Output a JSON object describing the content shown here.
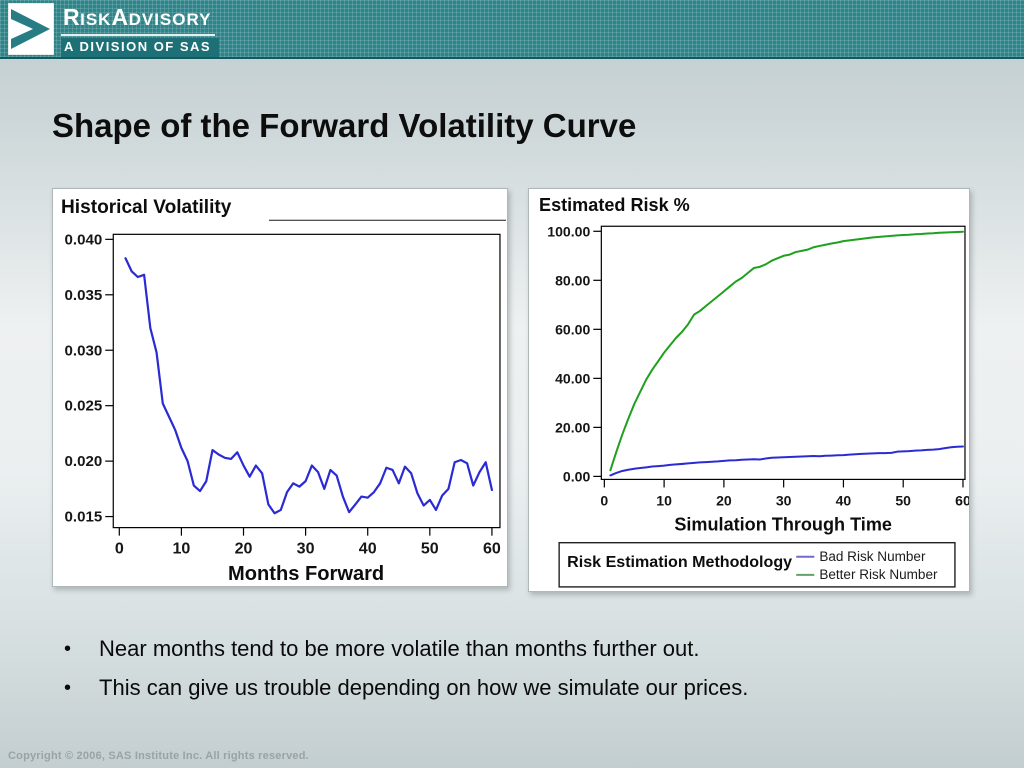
{
  "banner": {
    "brand": {
      "w1i": "R",
      "w1r": "ISK",
      "w2i": "A",
      "w2r": "DVISORY"
    },
    "division": "A DIVISION OF SAS"
  },
  "slide": {
    "title": "Shape of the Forward Volatility Curve",
    "bullet_char": "•",
    "bullets": [
      "Near months tend to be more volatile than months further out.",
      "This can give us trouble depending on how we simulate our prices."
    ],
    "footer": "Copyright © 2006, SAS Institute Inc. All rights reserved."
  },
  "colors": {
    "banner_teal": "#2d8489",
    "division_band": "#1d7076",
    "line_blue": "#2b2bd4",
    "line_green": "#1fa11f",
    "legend_blue_dash": "#6b6bd0",
    "legend_green_dash": "#64a06a"
  },
  "chart_data": [
    {
      "id": "historical_volatility",
      "type": "line",
      "title": "Historical Volatility",
      "xlabel": "Months Forward",
      "ylabel": "",
      "xlim": [
        0,
        60
      ],
      "ylim": [
        0.015,
        0.04
      ],
      "grid": false,
      "legend": null,
      "xticks": {
        "values": [
          0,
          10,
          20,
          30,
          40,
          50,
          60
        ],
        "labels": [
          "0",
          "10",
          "20",
          "30",
          "40",
          "50",
          "60"
        ]
      },
      "yticks": {
        "values": [
          0.04,
          0.035,
          0.03,
          0.025,
          0.02,
          0.015
        ],
        "labels": [
          "0.040",
          "0.035",
          "0.030",
          "0.025",
          "0.020",
          "0.015"
        ]
      },
      "series": [
        {
          "name": "Historical Volatility",
          "color_key": "line_blue",
          "x": [
            1,
            2,
            3,
            4,
            5,
            6,
            7,
            8,
            9,
            10,
            11,
            12,
            13,
            14,
            15,
            16,
            17,
            18,
            19,
            20,
            21,
            22,
            23,
            24,
            25,
            26,
            27,
            28,
            29,
            30,
            31,
            32,
            33,
            34,
            35,
            36,
            37,
            38,
            39,
            40,
            41,
            42,
            43,
            44,
            45,
            46,
            47,
            48,
            49,
            50,
            51,
            52,
            53,
            54,
            55,
            56,
            57,
            58,
            59,
            60
          ],
          "y": [
            0.0383,
            0.0371,
            0.0366,
            0.0368,
            0.032,
            0.0298,
            0.0252,
            0.024,
            0.0228,
            0.0212,
            0.02,
            0.0178,
            0.0173,
            0.0182,
            0.021,
            0.0206,
            0.0203,
            0.0202,
            0.0208,
            0.0196,
            0.0186,
            0.0196,
            0.0189,
            0.0161,
            0.0153,
            0.0156,
            0.0172,
            0.018,
            0.0177,
            0.0182,
            0.0196,
            0.019,
            0.0175,
            0.0192,
            0.0187,
            0.0168,
            0.0154,
            0.0161,
            0.0168,
            0.0167,
            0.0172,
            0.018,
            0.0194,
            0.0192,
            0.018,
            0.0195,
            0.0189,
            0.0171,
            0.016,
            0.0165,
            0.0156,
            0.0169,
            0.0175,
            0.0199,
            0.0201,
            0.0198,
            0.0178,
            0.019,
            0.0199,
            0.0174
          ]
        }
      ]
    },
    {
      "id": "estimated_risk",
      "type": "line",
      "title": "Estimated Risk %",
      "xlabel": "Simulation Through Time",
      "ylabel": "",
      "xlim": [
        0,
        60
      ],
      "ylim": [
        0,
        100
      ],
      "grid": false,
      "xticks": {
        "values": [
          0,
          10,
          20,
          30,
          40,
          50,
          60
        ],
        "labels": [
          "0",
          "10",
          "20",
          "30",
          "40",
          "50",
          "60"
        ]
      },
      "yticks": {
        "values": [
          100,
          80,
          60,
          40,
          20,
          0
        ],
        "labels": [
          "100.00",
          "80.00",
          "60.00",
          "40.00",
          "20.00",
          "0.00"
        ]
      },
      "legend": {
        "title": "Risk Estimation Methodology",
        "entries": [
          {
            "label": "Bad Risk Number",
            "color_key": "legend_blue_dash"
          },
          {
            "label": "Better Risk Number",
            "color_key": "legend_green_dash"
          }
        ]
      },
      "series": [
        {
          "name": "Bad Risk Number",
          "color_key": "line_blue",
          "x": [
            1,
            2,
            3,
            4,
            5,
            6,
            7,
            8,
            9,
            10,
            11,
            12,
            13,
            14,
            15,
            16,
            17,
            18,
            19,
            20,
            21,
            22,
            23,
            24,
            25,
            26,
            27,
            28,
            29,
            30,
            31,
            32,
            33,
            34,
            35,
            36,
            37,
            38,
            39,
            40,
            41,
            42,
            43,
            44,
            45,
            46,
            47,
            48,
            49,
            50,
            51,
            52,
            53,
            54,
            55,
            56,
            57,
            58,
            59,
            60
          ],
          "y": [
            0.4,
            1.4,
            2.2,
            2.7,
            3.1,
            3.4,
            3.7,
            4.0,
            4.2,
            4.4,
            4.7,
            4.9,
            5.1,
            5.3,
            5.5,
            5.7,
            5.8,
            6.0,
            6.1,
            6.3,
            6.5,
            6.6,
            6.8,
            6.9,
            7.0,
            6.9,
            7.3,
            7.6,
            7.7,
            7.8,
            7.9,
            8.0,
            8.1,
            8.2,
            8.3,
            8.2,
            8.4,
            8.5,
            8.6,
            8.7,
            8.9,
            9.0,
            9.2,
            9.3,
            9.4,
            9.5,
            9.5,
            9.6,
            10.1,
            10.2,
            10.3,
            10.5,
            10.6,
            10.8,
            10.9,
            11.1,
            11.5,
            11.9,
            12.1,
            12.2
          ]
        },
        {
          "name": "Better Risk Number",
          "color_key": "line_green",
          "x": [
            1,
            2,
            3,
            4,
            5,
            6,
            7,
            8,
            9,
            10,
            11,
            12,
            13,
            14,
            15,
            16,
            17,
            18,
            19,
            20,
            21,
            22,
            23,
            24,
            25,
            26,
            27,
            28,
            29,
            30,
            31,
            32,
            33,
            34,
            35,
            36,
            37,
            38,
            39,
            40,
            41,
            42,
            43,
            44,
            45,
            46,
            47,
            48,
            49,
            50,
            51,
            52,
            53,
            54,
            55,
            56,
            57,
            58,
            59,
            60
          ],
          "y": [
            2.5,
            10.0,
            17.0,
            23.5,
            29.5,
            34.5,
            39.5,
            43.5,
            47.0,
            50.5,
            53.5,
            56.5,
            59.0,
            62.0,
            66.0,
            67.5,
            69.5,
            71.5,
            73.5,
            75.5,
            77.5,
            79.5,
            81.0,
            83.0,
            85.0,
            85.5,
            86.5,
            88.0,
            89.0,
            90.0,
            90.5,
            91.5,
            92.0,
            92.5,
            93.5,
            94.0,
            94.5,
            95.0,
            95.4,
            96.0,
            96.3,
            96.6,
            96.9,
            97.2,
            97.5,
            97.7,
            97.9,
            98.1,
            98.3,
            98.5,
            98.6,
            98.8,
            98.9,
            99.1,
            99.2,
            99.4,
            99.5,
            99.6,
            99.7,
            99.8
          ]
        }
      ]
    }
  ]
}
